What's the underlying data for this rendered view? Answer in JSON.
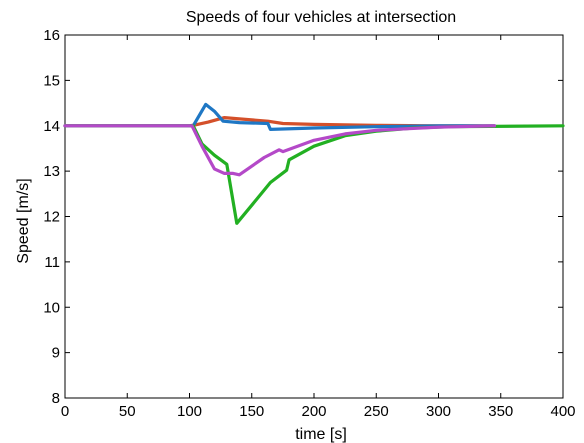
{
  "chart_data": {
    "type": "line",
    "title": "Speeds of four vehicles at intersection",
    "xlabel": "time [s]",
    "ylabel": "Speed [m/s]",
    "xlim": [
      0,
      400
    ],
    "ylim": [
      8,
      16
    ],
    "xticks": [
      0,
      50,
      100,
      150,
      200,
      250,
      300,
      350,
      400
    ],
    "yticks": [
      8,
      9,
      10,
      11,
      12,
      13,
      14,
      15,
      16
    ],
    "grid": false,
    "legend": "none",
    "series": [
      {
        "color": "#d4502a",
        "x": [
          0,
          100,
          105,
          115,
          128,
          140,
          163,
          175,
          200,
          250,
          300,
          345
        ],
        "y": [
          14.0,
          14.0,
          14.02,
          14.08,
          14.18,
          14.15,
          14.1,
          14.05,
          14.03,
          14.01,
          14.0,
          14.0
        ]
      },
      {
        "color": "#1f77c4",
        "x": [
          0,
          103,
          113,
          120,
          127,
          140,
          163,
          165,
          200,
          250,
          300,
          345
        ],
        "y": [
          14.0,
          14.0,
          14.47,
          14.32,
          14.1,
          14.07,
          14.05,
          13.92,
          13.95,
          13.98,
          14.0,
          14.0
        ]
      },
      {
        "color": "#22b022",
        "x": [
          0,
          103,
          110,
          120,
          130,
          138,
          150,
          165,
          178,
          180,
          200,
          225,
          250,
          280,
          310,
          400
        ],
        "y": [
          14.0,
          14.0,
          13.6,
          13.35,
          13.15,
          11.85,
          12.25,
          12.75,
          13.02,
          13.25,
          13.55,
          13.78,
          13.88,
          13.95,
          13.98,
          14.0
        ]
      },
      {
        "color": "#b449c8",
        "x": [
          0,
          102,
          110,
          120,
          128,
          135,
          140,
          160,
          172,
          175,
          200,
          225,
          250,
          300,
          345
        ],
        "y": [
          14.0,
          14.0,
          13.55,
          13.05,
          12.95,
          12.95,
          12.92,
          13.3,
          13.47,
          13.43,
          13.68,
          13.82,
          13.9,
          13.97,
          14.0
        ]
      }
    ]
  }
}
